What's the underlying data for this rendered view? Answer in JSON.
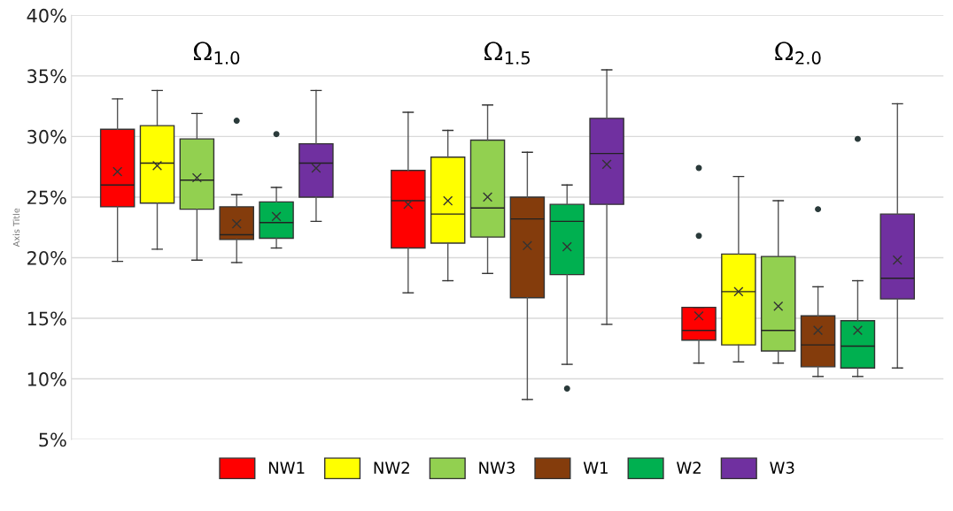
{
  "chart_data": {
    "type": "box",
    "ylabel": "Axis Title",
    "categories": [
      "Ω$_{1.0}$",
      "Ω$_{1.5}$",
      "Ω$_{2.0}$"
    ],
    "ylim": [
      5,
      40
    ],
    "yticks": [
      {
        "value": 5,
        "label": "5%"
      },
      {
        "value": 10,
        "label": "10%"
      },
      {
        "value": 15,
        "label": "15%"
      },
      {
        "value": 20,
        "label": "20%"
      },
      {
        "value": 25,
        "label": "25%"
      },
      {
        "value": 30,
        "label": "30%"
      },
      {
        "value": 35,
        "label": "35%"
      },
      {
        "value": 40,
        "label": "40%"
      }
    ],
    "grid": "y",
    "legend": "bottom",
    "series": [
      {
        "name": "NW1",
        "color": "#ff0000",
        "boxes": [
          {
            "low": 19.7,
            "q1": 24.2,
            "median": 26.0,
            "q3": 30.6,
            "high": 33.1,
            "mean": 27.1
          },
          {
            "low": 17.1,
            "q1": 20.8,
            "median": 24.7,
            "q3": 27.2,
            "high": 32.0,
            "mean": 24.4
          },
          {
            "low": 11.3,
            "q1": 13.2,
            "median": 14.0,
            "q3": 15.9,
            "high": 15.9,
            "mean": 15.2,
            "outliers": [
              27.4,
              21.8
            ]
          }
        ]
      },
      {
        "name": "NW2",
        "color": "#ffff00",
        "boxes": [
          {
            "low": 20.7,
            "q1": 24.5,
            "median": 27.8,
            "q3": 30.9,
            "high": 33.8,
            "mean": 27.6
          },
          {
            "low": 18.1,
            "q1": 21.2,
            "median": 23.6,
            "q3": 28.3,
            "high": 30.5,
            "mean": 24.7
          },
          {
            "low": 11.4,
            "q1": 12.8,
            "median": 17.2,
            "q3": 20.3,
            "high": 26.7,
            "mean": 17.2
          }
        ]
      },
      {
        "name": "NW3",
        "color": "#92d050",
        "boxes": [
          {
            "low": 19.8,
            "q1": 24.0,
            "median": 26.4,
            "q3": 29.8,
            "high": 31.9,
            "mean": 26.6
          },
          {
            "low": 18.7,
            "q1": 21.7,
            "median": 24.1,
            "q3": 29.7,
            "high": 32.6,
            "mean": 25.0
          },
          {
            "low": 11.3,
            "q1": 12.3,
            "median": 14.0,
            "q3": 20.1,
            "high": 24.7,
            "mean": 16.0
          }
        ]
      },
      {
        "name": "W1",
        "color": "#843c0c",
        "boxes": [
          {
            "low": 19.6,
            "q1": 21.5,
            "median": 21.9,
            "q3": 24.2,
            "high": 25.2,
            "mean": 22.8,
            "outliers": [
              31.3
            ]
          },
          {
            "low": 8.3,
            "q1": 16.7,
            "median": 23.2,
            "q3": 25.0,
            "high": 28.7,
            "mean": 21.0
          },
          {
            "low": 10.2,
            "q1": 11.0,
            "median": 12.8,
            "q3": 15.2,
            "high": 17.6,
            "mean": 14.0,
            "outliers": [
              24.0
            ]
          }
        ]
      },
      {
        "name": "W2",
        "color": "#00b050",
        "boxes": [
          {
            "low": 20.8,
            "q1": 21.6,
            "median": 22.9,
            "q3": 24.6,
            "high": 25.8,
            "mean": 23.4,
            "outliers": [
              30.2
            ]
          },
          {
            "low": 11.2,
            "q1": 18.6,
            "median": 23.0,
            "q3": 24.4,
            "high": 26.0,
            "mean": 20.9,
            "outliers": [
              9.2
            ]
          },
          {
            "low": 10.2,
            "q1": 10.9,
            "median": 12.7,
            "q3": 14.8,
            "high": 18.1,
            "mean": 14.0,
            "outliers": [
              29.8
            ]
          }
        ]
      },
      {
        "name": "W3",
        "color": "#7030a0",
        "boxes": [
          {
            "low": 23.0,
            "q1": 25.0,
            "median": 27.8,
            "q3": 29.4,
            "high": 33.8,
            "mean": 27.4
          },
          {
            "low": 14.5,
            "q1": 24.4,
            "median": 28.6,
            "q3": 31.5,
            "high": 35.5,
            "mean": 27.7
          },
          {
            "low": 10.9,
            "q1": 16.6,
            "median": 18.3,
            "q3": 23.6,
            "high": 32.7,
            "mean": 19.8
          }
        ]
      }
    ]
  }
}
